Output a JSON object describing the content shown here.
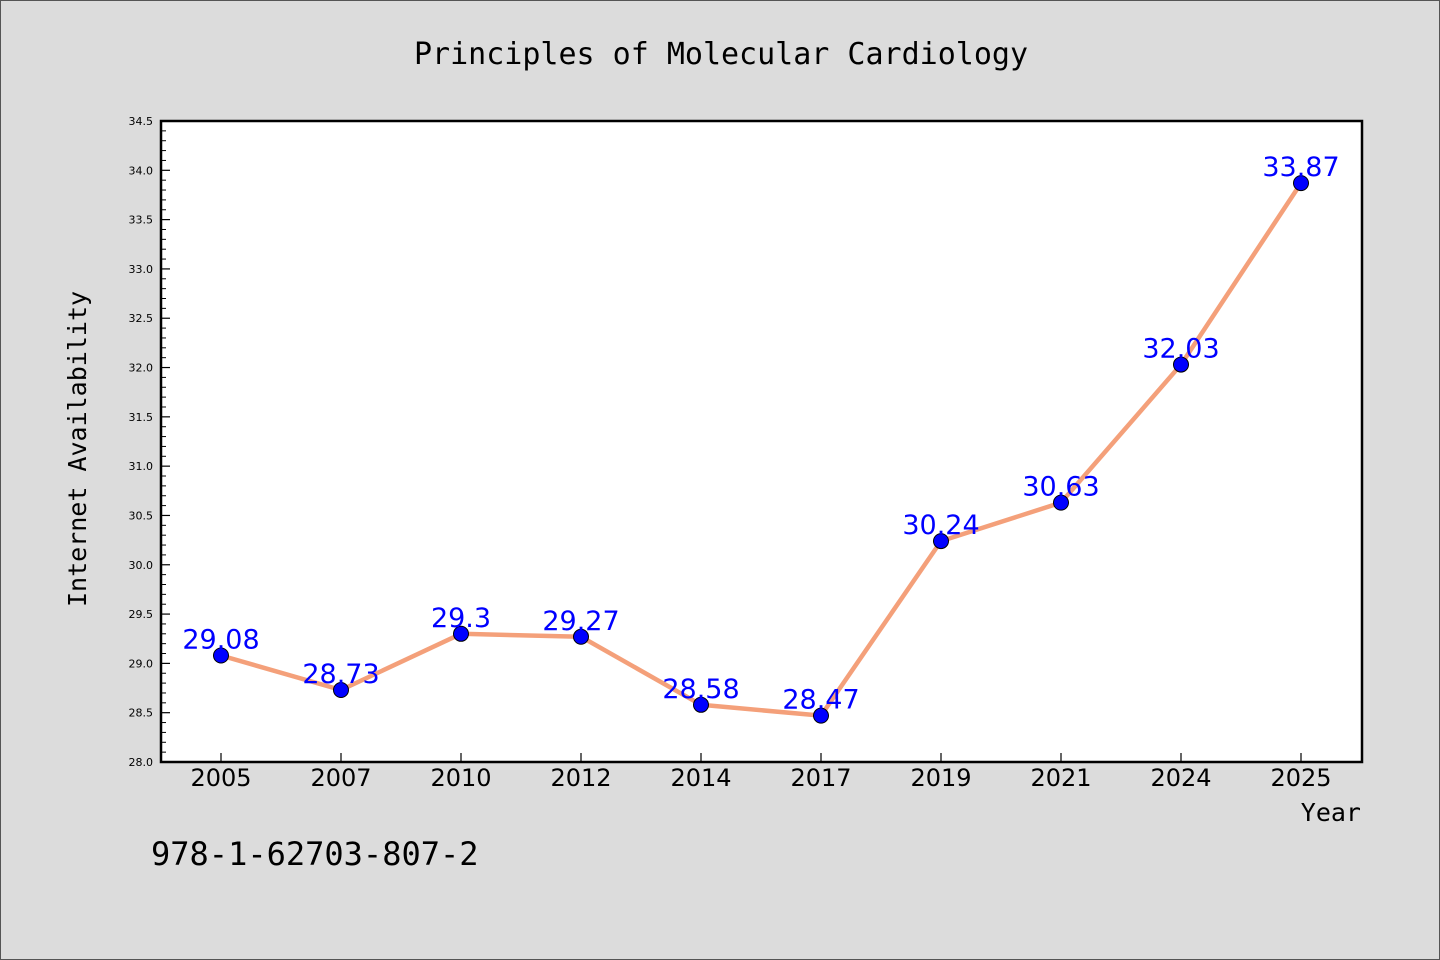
{
  "chart_data": {
    "type": "line",
    "title": "Principles of Molecular Cardiology",
    "xlabel": "Year",
    "ylabel": "Internet Availability",
    "categories": [
      "2005",
      "2007",
      "2010",
      "2012",
      "2014",
      "2017",
      "2019",
      "2021",
      "2024",
      "2025"
    ],
    "series": [
      {
        "values": [
          29.08,
          28.73,
          29.3,
          29.27,
          28.58,
          28.47,
          30.24,
          30.63,
          32.03,
          33.87
        ],
        "data_labels": [
          "29.08",
          "28.73",
          "29.3",
          "29.27",
          "28.58",
          "28.47",
          "30.24",
          "30.63",
          "32.03",
          "33.87"
        ],
        "line_color": "#f4a07a",
        "marker_color": "#0000ff"
      }
    ],
    "ylim": [
      28.0,
      34.5
    ],
    "y_ticks": [
      "28.0",
      "28.5",
      "29.0",
      "29.5",
      "30.0",
      "30.5",
      "31.0",
      "31.5",
      "32.0",
      "32.5",
      "33.0",
      "33.5",
      "34.0",
      "34.5"
    ],
    "grid": false,
    "legend": "none",
    "plot_background": "#ffffff",
    "figure_background": "#dcdcdc",
    "data_label_color": "#0000ff"
  },
  "footer": {
    "isbn": "978-1-62703-807-2"
  }
}
